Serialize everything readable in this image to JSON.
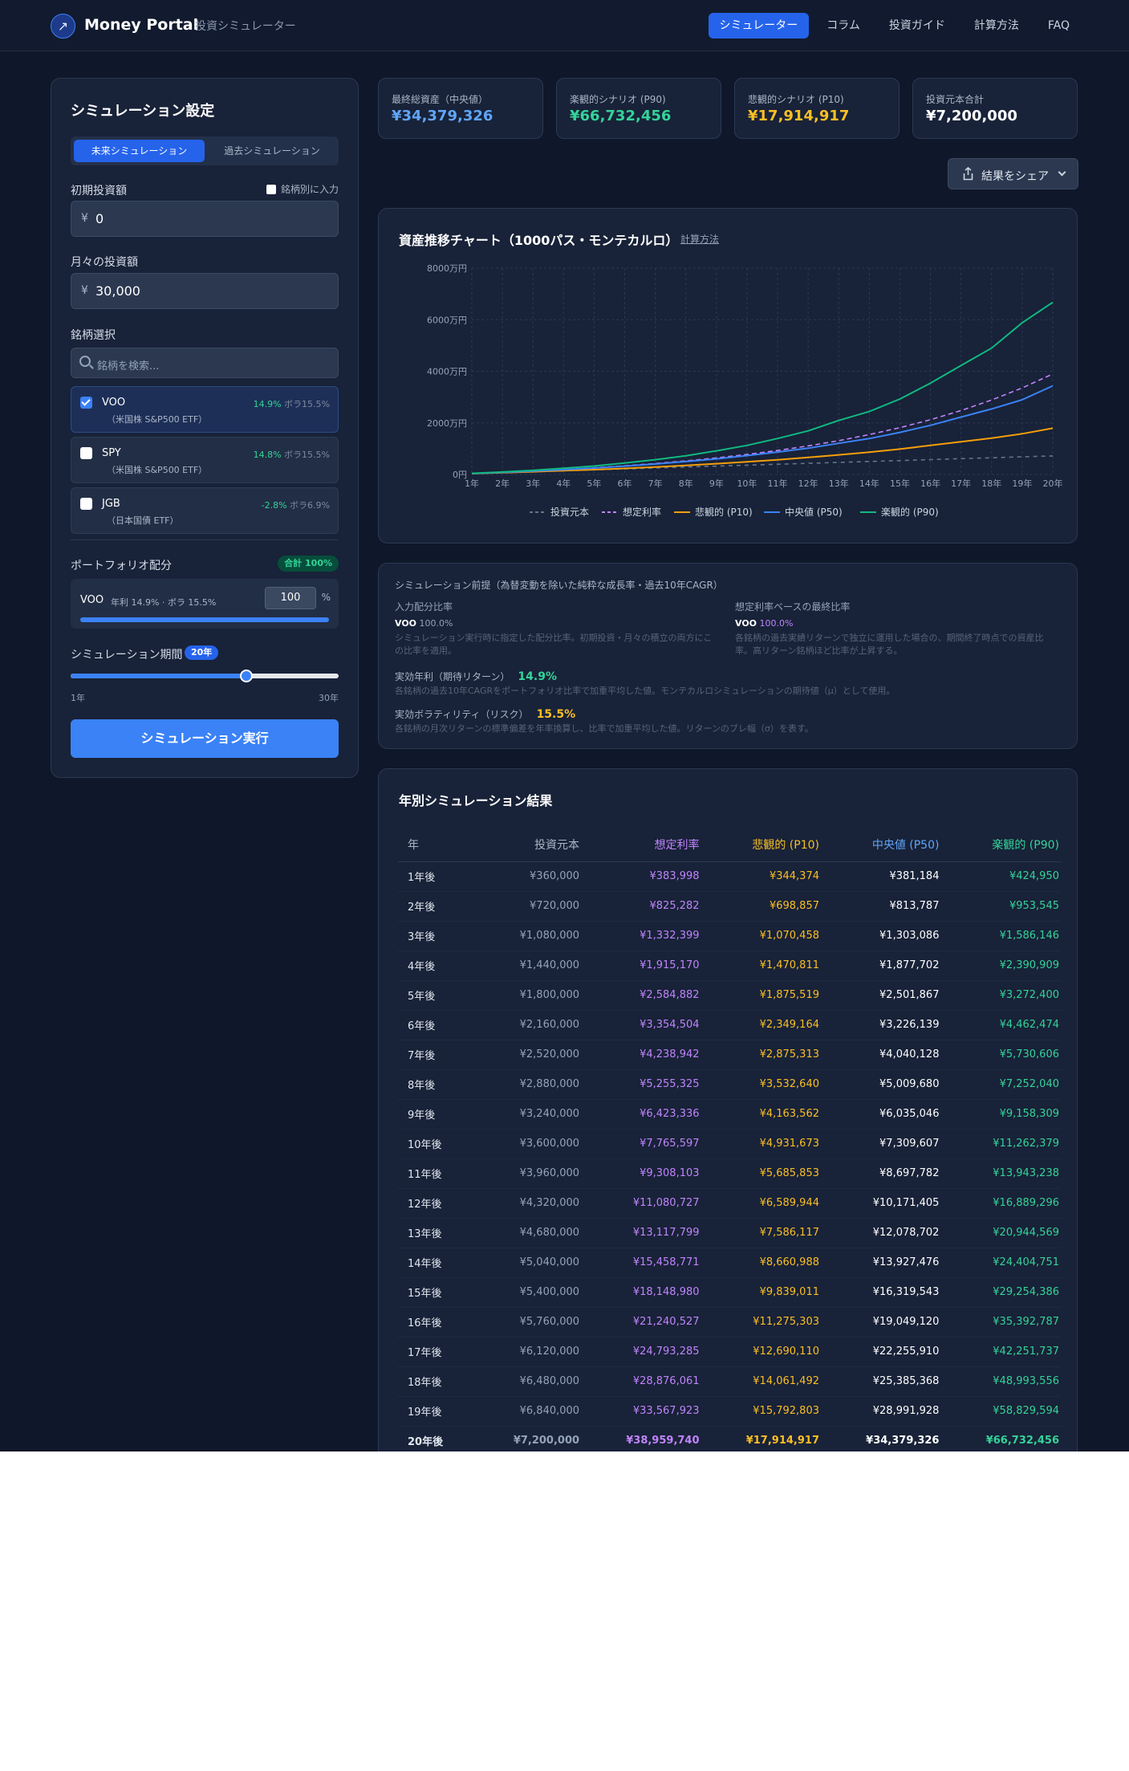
{
  "header": {
    "brand": "Money Portal",
    "subtitle": "投資シミュレーター",
    "logo_icon": "rocket-icon",
    "nav": [
      "シミュレーター",
      "コラム",
      "投資ガイド",
      "計算方法",
      "FAQ"
    ],
    "active_nav": 0
  },
  "settings": {
    "title": "シミュレーション設定",
    "tabs": [
      "未来シミュレーション",
      "過去シミュレーション"
    ],
    "initial_label": "初期投資額",
    "per_ticker_label": "銘柄別に入力",
    "currency": "¥",
    "initial_value": "0",
    "monthly_label": "月々の投資額",
    "monthly_value": "30,000",
    "ticker_label": "銘柄選択",
    "search_placeholder": "銘柄を検索...",
    "tickers": [
      {
        "name": "VOO",
        "desc": "（米国株 S&P500 ETF）",
        "ret": "14.9%",
        "vol": "ボラ15.5%",
        "checked": true
      },
      {
        "name": "SPY",
        "desc": "（米国株 S&P500 ETF）",
        "ret": "14.8%",
        "vol": "ボラ15.5%",
        "checked": false
      },
      {
        "name": "JGB",
        "desc": "（日本国債 ETF）",
        "ret": "-2.8%",
        "vol": "ボラ6.9%",
        "checked": false
      }
    ],
    "portfolio_label": "ポートフォリオ配分",
    "portfolio_total": "合計 100%",
    "alloc": {
      "name": "VOO",
      "meta": "年利 14.9% · ボラ 15.5%",
      "value": "100",
      "unit": "%",
      "fraction": 1.0
    },
    "period_label": "シミュレーション期間",
    "period_value": "20年",
    "period_years": 20,
    "period_min_years": 1,
    "period_max_years": 30,
    "period_min": "1年",
    "period_max": "30年",
    "run_label": "シミュレーション実行"
  },
  "stats": [
    {
      "label": "最終総資産（中央値）",
      "value": "¥34,379,326",
      "color": "#60a5fa"
    },
    {
      "label": "楽観的シナリオ (P90)",
      "value": "¥66,732,456",
      "color": "#34d399"
    },
    {
      "label": "悲観的シナリオ (P10)",
      "value": "¥17,914,917",
      "color": "#fbbf24"
    },
    {
      "label": "投資元本合計",
      "value": "¥7,200,000",
      "color": "#ffffff"
    }
  ],
  "share": {
    "label": "結果をシェア",
    "icon": "share-icon"
  },
  "chart_data": {
    "type": "line",
    "title": "資産推移チャート（1000パス・モンテカルロ）",
    "link_label": "計算方法",
    "x": [
      "1年",
      "2年",
      "3年",
      "4年",
      "5年",
      "6年",
      "7年",
      "8年",
      "9年",
      "10年",
      "11年",
      "12年",
      "13年",
      "14年",
      "15年",
      "16年",
      "17年",
      "18年",
      "19年",
      "20年"
    ],
    "y_ticks": [
      "0円",
      "2000万円",
      "4000万円",
      "6000万円",
      "8000万円"
    ],
    "ylim": [
      0,
      80000000
    ],
    "grid": true,
    "legend_position": "bottom",
    "series": [
      {
        "name": "投資元本",
        "style": "dashed",
        "color": "#64748b",
        "values": [
          360000,
          720000,
          1080000,
          1440000,
          1800000,
          2160000,
          2520000,
          2880000,
          3240000,
          3600000,
          3960000,
          4320000,
          4680000,
          5040000,
          5400000,
          5760000,
          6120000,
          6480000,
          6840000,
          7200000
        ]
      },
      {
        "name": "想定利率",
        "style": "dashed",
        "color": "#c084fc",
        "values": [
          383998,
          825282,
          1332399,
          1915170,
          2584882,
          3354504,
          4238942,
          5255325,
          6423336,
          7765597,
          9308103,
          11080727,
          13117799,
          15458771,
          18148980,
          21240527,
          24793285,
          28876061,
          33567923,
          38959740
        ]
      },
      {
        "name": "悲観的 (P10)",
        "style": "solid",
        "color": "#f59e0b",
        "values": [
          344374,
          698857,
          1070458,
          1470811,
          1875519,
          2349164,
          2875313,
          3532640,
          4163562,
          4931673,
          5685853,
          6589944,
          7586117,
          8660988,
          9839011,
          11275303,
          12690110,
          14061492,
          15792803,
          17914917
        ]
      },
      {
        "name": "中央値 (P50)",
        "style": "solid",
        "color": "#3b82f6",
        "values": [
          381184,
          813787,
          1303086,
          1877702,
          2501867,
          3226139,
          4040128,
          5009680,
          6035046,
          7309607,
          8697782,
          10171405,
          12078702,
          13927476,
          16319543,
          19049120,
          22255910,
          25385368,
          28991928,
          34379326
        ]
      },
      {
        "name": "楽観的 (P90)",
        "style": "solid",
        "color": "#10b981",
        "values": [
          424950,
          953545,
          1586146,
          2390909,
          3272400,
          4462474,
          5730606,
          7252040,
          9158309,
          11262379,
          13943238,
          16889296,
          20944569,
          24404751,
          29254386,
          35392787,
          42251737,
          48993556,
          58829594,
          66732456
        ]
      }
    ]
  },
  "premise": {
    "heading": "シミュレーション前提（為替変動を除いた純粋な成長率・過去10年CAGR）",
    "left_title": "入力配分比率",
    "left_name": "VOO",
    "left_pct": "100.0%",
    "left_note": "シミュレーション実行時に指定した配分比率。初期投資・月々の積立の両方にこの比率を適用。",
    "right_title": "想定利率ベースの最終比率",
    "right_name": "VOO",
    "right_pct": "100.0%",
    "right_note": "各銘柄の過去実績リターンで独立に運用した場合の、期間終了時点での資産比率。高リターン銘柄ほど比率が上昇する。",
    "ret_label": "実効年利（期待リターン）",
    "ret_value": "14.9%",
    "ret_note": "各銘柄の過去10年CAGRをポートフォリオ比率で加重平均した値。モンテカルロシミュレーションの期待値（μ）として使用。",
    "vol_label": "実効ボラティリティ（リスク）",
    "vol_value": "15.5%",
    "vol_note": "各銘柄の月次リターンの標準偏差を年率換算し、比率で加重平均した値。リターンのブレ幅（σ）を表す。"
  },
  "results": {
    "title": "年別シミュレーション結果",
    "columns": [
      "年",
      "投資元本",
      "想定利率",
      "悲観的 (P10)",
      "中央値 (P50)",
      "楽観的 (P90)"
    ],
    "rows": [
      [
        "1年後",
        "¥360,000",
        "¥383,998",
        "¥344,374",
        "¥381,184",
        "¥424,950"
      ],
      [
        "2年後",
        "¥720,000",
        "¥825,282",
        "¥698,857",
        "¥813,787",
        "¥953,545"
      ],
      [
        "3年後",
        "¥1,080,000",
        "¥1,332,399",
        "¥1,070,458",
        "¥1,303,086",
        "¥1,586,146"
      ],
      [
        "4年後",
        "¥1,440,000",
        "¥1,915,170",
        "¥1,470,811",
        "¥1,877,702",
        "¥2,390,909"
      ],
      [
        "5年後",
        "¥1,800,000",
        "¥2,584,882",
        "¥1,875,519",
        "¥2,501,867",
        "¥3,272,400"
      ],
      [
        "6年後",
        "¥2,160,000",
        "¥3,354,504",
        "¥2,349,164",
        "¥3,226,139",
        "¥4,462,474"
      ],
      [
        "7年後",
        "¥2,520,000",
        "¥4,238,942",
        "¥2,875,313",
        "¥4,040,128",
        "¥5,730,606"
      ],
      [
        "8年後",
        "¥2,880,000",
        "¥5,255,325",
        "¥3,532,640",
        "¥5,009,680",
        "¥7,252,040"
      ],
      [
        "9年後",
        "¥3,240,000",
        "¥6,423,336",
        "¥4,163,562",
        "¥6,035,046",
        "¥9,158,309"
      ],
      [
        "10年後",
        "¥3,600,000",
        "¥7,765,597",
        "¥4,931,673",
        "¥7,309,607",
        "¥11,262,379"
      ],
      [
        "11年後",
        "¥3,960,000",
        "¥9,308,103",
        "¥5,685,853",
        "¥8,697,782",
        "¥13,943,238"
      ],
      [
        "12年後",
        "¥4,320,000",
        "¥11,080,727",
        "¥6,589,944",
        "¥10,171,405",
        "¥16,889,296"
      ],
      [
        "13年後",
        "¥4,680,000",
        "¥13,117,799",
        "¥7,586,117",
        "¥12,078,702",
        "¥20,944,569"
      ],
      [
        "14年後",
        "¥5,040,000",
        "¥15,458,771",
        "¥8,660,988",
        "¥13,927,476",
        "¥24,404,751"
      ],
      [
        "15年後",
        "¥5,400,000",
        "¥18,148,980",
        "¥9,839,011",
        "¥16,319,543",
        "¥29,254,386"
      ],
      [
        "16年後",
        "¥5,760,000",
        "¥21,240,527",
        "¥11,275,303",
        "¥19,049,120",
        "¥35,392,787"
      ],
      [
        "17年後",
        "¥6,120,000",
        "¥24,793,285",
        "¥12,690,110",
        "¥22,255,910",
        "¥42,251,737"
      ],
      [
        "18年後",
        "¥6,480,000",
        "¥28,876,061",
        "¥14,061,492",
        "¥25,385,368",
        "¥48,993,556"
      ],
      [
        "19年後",
        "¥6,840,000",
        "¥33,567,923",
        "¥15,792,803",
        "¥28,991,928",
        "¥58,829,594"
      ],
      [
        "20年後",
        "¥7,200,000",
        "¥38,959,740",
        "¥17,914,917",
        "¥34,379,326",
        "¥66,732,456"
      ]
    ]
  }
}
